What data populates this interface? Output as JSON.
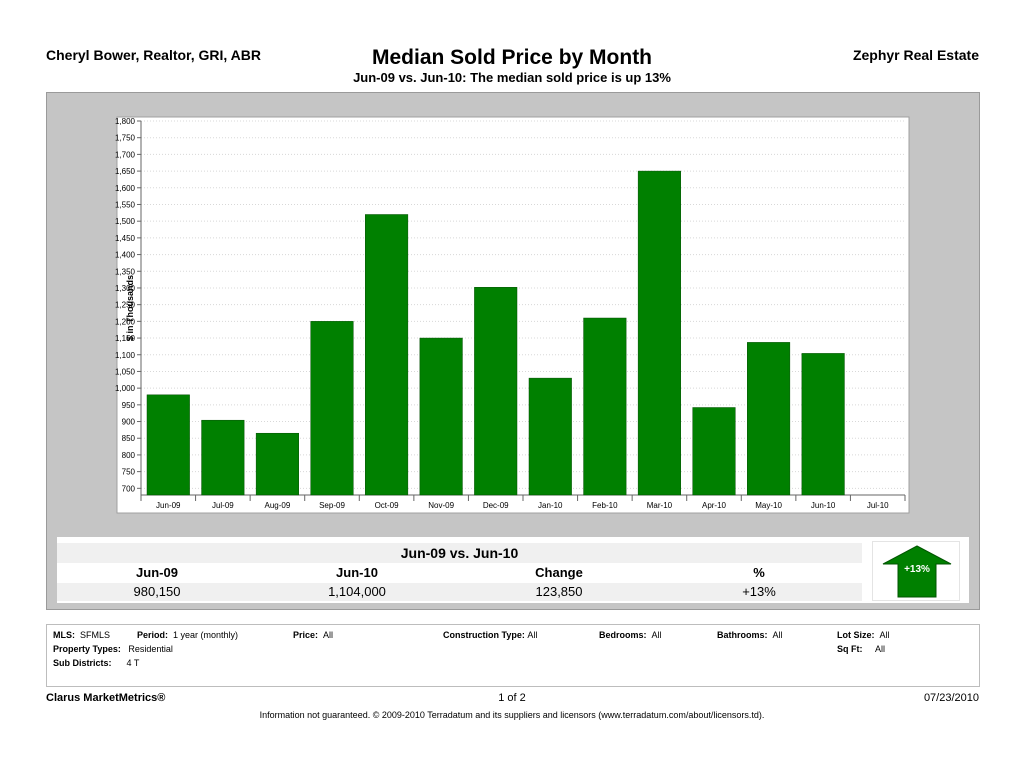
{
  "header": {
    "agent": "Cheryl Bower, Realtor, GRI, ABR",
    "title": "Median Sold Price by Month",
    "subtitle": "Jun-09 vs. Jun-10:  The median sold price is up 13%",
    "company": "Zephyr Real Estate"
  },
  "chart_data": {
    "type": "bar",
    "title": "Median Sold Price by Month",
    "ylabel": "$ in Thousands",
    "xlabel": "",
    "categories": [
      "Jun-09",
      "Jul-09",
      "Aug-09",
      "Sep-09",
      "Oct-09",
      "Nov-09",
      "Dec-09",
      "Jan-10",
      "Feb-10",
      "Mar-10",
      "Apr-10",
      "May-10",
      "Jun-10",
      "Jul-10"
    ],
    "values": [
      980,
      904,
      865,
      1200,
      1520,
      1150,
      1302,
      1030,
      1210,
      1650,
      942,
      1137,
      1104,
      null
    ],
    "ylim": [
      680,
      1800
    ],
    "yticks": [
      700,
      750,
      800,
      850,
      900,
      950,
      1000,
      1050,
      1100,
      1150,
      1200,
      1250,
      1300,
      1350,
      1400,
      1450,
      1500,
      1550,
      1600,
      1650,
      1700,
      1750,
      1800
    ],
    "ytick_labels": [
      "700",
      "750",
      "800",
      "850",
      "900",
      "950",
      "1,000",
      "1,050",
      "1,100",
      "1,150",
      "1,200",
      "1,250",
      "1,300",
      "1,350",
      "1,400",
      "1,450",
      "1,500",
      "1,550",
      "1,600",
      "1,650",
      "1,700",
      "1,750",
      "1,800"
    ],
    "bar_color": "#008000",
    "grid": true
  },
  "summary": {
    "title": "Jun-09 vs. Jun-10",
    "headers": [
      "Jun-09",
      "Jun-10",
      "Change",
      "%"
    ],
    "values": [
      "980,150",
      "1,104,000",
      "123,850",
      "+13%"
    ],
    "arrow_label": "+13%",
    "arrow_color": "#008000"
  },
  "criteria": {
    "mls_label": "MLS:",
    "mls": "SFMLS",
    "period_label": "Period:",
    "period": "1 year (monthly)",
    "price_label": "Price:",
    "price": "All",
    "construction_label": "Construction Type:",
    "construction": "All",
    "bedrooms_label": "Bedrooms:",
    "bedrooms": "All",
    "bathrooms_label": "Bathrooms:",
    "bathrooms": "All",
    "lotsize_label": "Lot Size:",
    "lotsize": "All",
    "proptype_label": "Property Types:",
    "proptype": "Residential",
    "sqft_label": "Sq Ft:",
    "sqft": "All",
    "subdistricts_label": "Sub Districts:",
    "subdistricts": "4 T"
  },
  "footer": {
    "brand": "Clarus MarketMetrics®",
    "page": "1 of 2",
    "date": "07/23/2010",
    "note": "Information not guaranteed.  © 2009-2010 Terradatum and its suppliers and licensors (www.terradatum.com/about/licensors.td)."
  }
}
